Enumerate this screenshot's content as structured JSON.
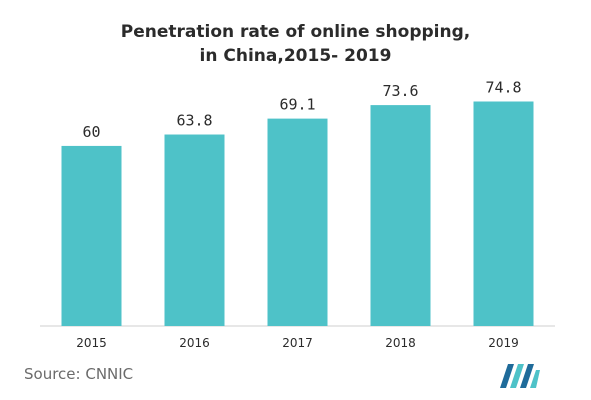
{
  "chart_data": {
    "type": "bar",
    "title_lines": [
      "Penetration rate of online shopping,",
      "in China,2015- 2019"
    ],
    "categories": [
      "2015",
      "2016",
      "2017",
      "2018",
      "2019"
    ],
    "values": [
      60,
      63.8,
      69.1,
      73.6,
      74.8
    ],
    "value_labels": [
      "60",
      "63.8",
      "69.1",
      "73.6",
      "74.8"
    ],
    "xlabel": "",
    "ylabel": "",
    "ylim": [
      0,
      80
    ],
    "grid": false,
    "legend": "none",
    "bar_color": "#4ec2c8"
  },
  "footer": {
    "source": "Source: CNNIC"
  },
  "logo": {
    "icon": "mordor-intelligence-logo-icon",
    "colors": [
      "#1f6b9a",
      "#4ec2c8"
    ]
  }
}
